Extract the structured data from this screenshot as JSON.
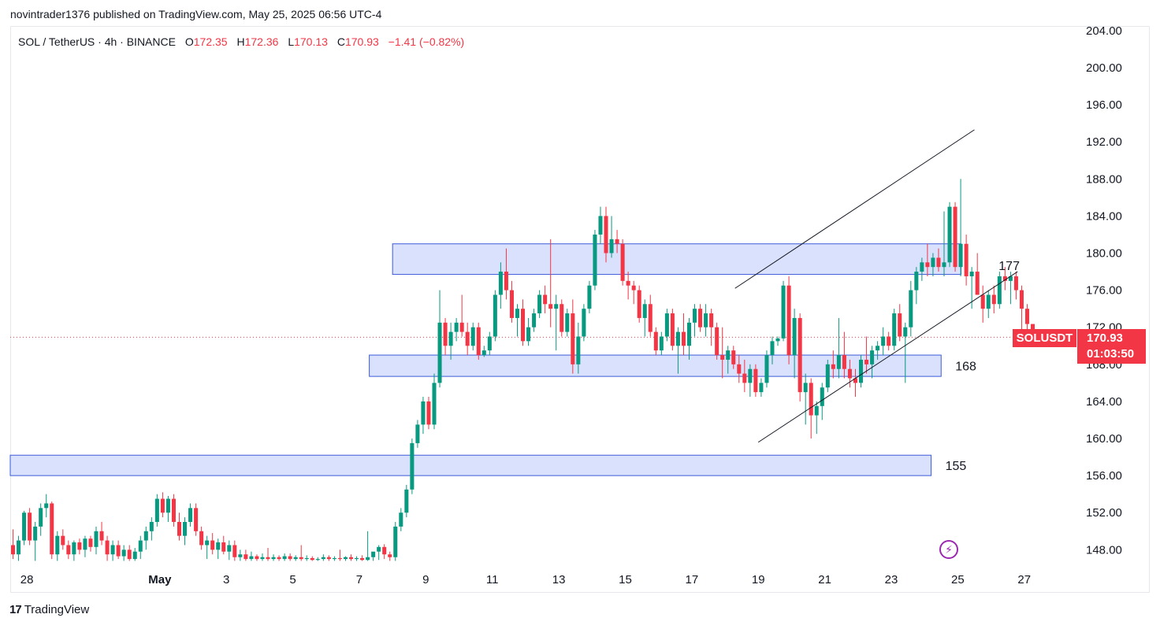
{
  "header": {
    "published_by": "novintrader1376 published on TradingView.com, May 25, 2025 06:56 UTC-4"
  },
  "legend": {
    "symbol_line": "SOL / TetherUS · 4h · BINANCE",
    "open_key": "O",
    "open": "172.35",
    "high_key": "H",
    "high": "172.36",
    "low_key": "L",
    "low": "170.13",
    "close_key": "C",
    "close": "170.93",
    "change": "−1.41 (−0.82%)"
  },
  "price_tag": {
    "symbol": "SOLUSDT",
    "price": "170.93",
    "countdown": "01:03:50"
  },
  "footer": {
    "logo_mark": "17",
    "brand": "TradingView"
  },
  "colors": {
    "up": "#089981",
    "down": "#f23645",
    "zone_fill": "#d2dcfb",
    "zone_stroke": "#3b5ad9",
    "channel": "#131722",
    "price_line": "#f23645"
  },
  "chart_data": {
    "type": "candlestick",
    "symbol": "SOLUSDT",
    "timeframe": "4h",
    "exchange": "BINANCE",
    "y_ticks": [
      148,
      152,
      156,
      160,
      164,
      168,
      172,
      176,
      180,
      184,
      188,
      192,
      196,
      200,
      204
    ],
    "y_tick_labels": [
      "148.00",
      "152.00",
      "156.00",
      "160.00",
      "164.00",
      "168.00",
      "172.00",
      "176.00",
      "180.00",
      "184.00",
      "188.00",
      "192.00",
      "196.00",
      "200.00",
      "204.00"
    ],
    "ylim": [
      146.5,
      204.5
    ],
    "x_tick_labels": [
      "28",
      "May",
      "3",
      "5",
      "7",
      "9",
      "11",
      "13",
      "15",
      "17",
      "19",
      "21",
      "23",
      "25",
      "27"
    ],
    "x_tick_days": [
      -3,
      1,
      3,
      5,
      7,
      9,
      11,
      13,
      15,
      17,
      19,
      21,
      23,
      25,
      27
    ],
    "xlim_days": [
      -3.5,
      28.5
    ],
    "last_price": 170.93,
    "zones": [
      {
        "low": 177.7,
        "high": 181.0,
        "x_start_day": 8.0,
        "x_end_day": 25.1
      },
      {
        "low": 166.7,
        "high": 169.0,
        "x_start_day": 7.3,
        "x_end_day": 24.5,
        "label": "168"
      },
      {
        "low": 156.0,
        "high": 158.2,
        "x_start_day": -3.5,
        "x_end_day": 24.2,
        "label": "155"
      }
    ],
    "channel_lines": [
      {
        "from": {
          "day": 18.3,
          "price": 176.2
        },
        "to": {
          "day": 25.5,
          "price": 193.3
        }
      },
      {
        "from": {
          "day": 19.0,
          "price": 159.6
        },
        "to": {
          "day": 26.8,
          "price": 178.0
        },
        "label": "177"
      }
    ],
    "candle_interval_days": 0.1667,
    "candles_start_day": -3.5,
    "candles": [
      [
        148.5,
        150.2,
        147.0,
        147.5
      ],
      [
        147.5,
        149.5,
        146.8,
        149.0
      ],
      [
        149.0,
        152.2,
        148.5,
        152.0
      ],
      [
        152.0,
        152.5,
        148.5,
        149.0
      ],
      [
        149.0,
        151.0,
        146.8,
        150.5
      ],
      [
        150.5,
        153.0,
        149.5,
        152.5
      ],
      [
        152.5,
        154.0,
        151.5,
        153.0
      ],
      [
        153.0,
        153.2,
        147.0,
        147.5
      ],
      [
        147.5,
        150.0,
        146.8,
        149.5
      ],
      [
        149.5,
        150.2,
        148.0,
        148.5
      ],
      [
        148.5,
        149.0,
        147.0,
        147.5
      ],
      [
        147.5,
        149.0,
        146.8,
        148.8
      ],
      [
        148.8,
        149.2,
        147.5,
        148.0
      ],
      [
        148.0,
        149.5,
        147.2,
        149.2
      ],
      [
        149.2,
        149.5,
        147.8,
        148.3
      ],
      [
        148.3,
        150.5,
        147.5,
        150.0
      ],
      [
        150.0,
        151.0,
        148.5,
        149.0
      ],
      [
        149.0,
        149.5,
        146.8,
        147.5
      ],
      [
        147.5,
        149.0,
        146.8,
        148.5
      ],
      [
        148.5,
        149.0,
        147.0,
        147.3
      ],
      [
        147.3,
        148.5,
        146.8,
        148.0
      ],
      [
        148.0,
        148.5,
        146.8,
        147.0
      ],
      [
        147.0,
        148.2,
        146.8,
        147.8
      ],
      [
        147.8,
        149.5,
        147.0,
        149.0
      ],
      [
        149.0,
        150.5,
        148.0,
        150.0
      ],
      [
        150.0,
        151.5,
        149.0,
        151.0
      ],
      [
        151.0,
        154.0,
        150.5,
        153.5
      ],
      [
        153.5,
        154.2,
        151.5,
        152.0
      ],
      [
        152.0,
        153.8,
        151.0,
        153.5
      ],
      [
        153.5,
        154.0,
        150.5,
        151.0
      ],
      [
        151.0,
        152.0,
        149.0,
        149.5
      ],
      [
        149.5,
        151.5,
        148.5,
        151.0
      ],
      [
        151.0,
        153.0,
        150.5,
        152.5
      ],
      [
        152.5,
        153.0,
        149.5,
        150.0
      ],
      [
        150.0,
        150.5,
        148.0,
        148.5
      ],
      [
        148.5,
        149.5,
        147.0,
        149.0
      ],
      [
        149.0,
        149.8,
        147.5,
        148.0
      ],
      [
        148.0,
        149.2,
        147.0,
        148.8
      ],
      [
        148.8,
        149.5,
        147.5,
        147.8
      ],
      [
        147.8,
        149.0,
        146.9,
        148.5
      ],
      [
        148.5,
        149.0,
        146.8,
        147.2
      ],
      [
        147.2,
        148.0,
        146.8,
        147.5
      ],
      [
        147.5,
        148.0,
        146.8,
        147.0
      ],
      [
        147.0,
        147.8,
        146.8,
        147.3
      ],
      [
        147.3,
        147.5,
        146.8,
        147.0
      ],
      [
        147.0,
        147.6,
        146.8,
        147.2
      ],
      [
        147.2,
        148.2,
        146.8,
        147.0
      ],
      [
        147.0,
        147.5,
        146.8,
        147.2
      ],
      [
        147.2,
        147.4,
        146.8,
        147.0
      ],
      [
        147.0,
        147.6,
        146.8,
        147.3
      ],
      [
        147.3,
        147.6,
        146.8,
        147.0
      ],
      [
        147.0,
        147.4,
        146.8,
        147.2
      ],
      [
        147.2,
        148.5,
        146.8,
        147.0
      ],
      [
        147.0,
        147.4,
        146.8,
        147.1
      ],
      [
        147.1,
        147.3,
        146.8,
        146.9
      ],
      [
        146.9,
        147.2,
        146.8,
        147.0
      ],
      [
        147.0,
        147.5,
        146.8,
        147.2
      ],
      [
        147.2,
        147.4,
        146.8,
        147.0
      ],
      [
        147.0,
        147.3,
        146.8,
        147.1
      ],
      [
        147.1,
        148.0,
        146.8,
        147.0
      ],
      [
        147.0,
        147.3,
        146.8,
        147.2
      ],
      [
        147.2,
        147.5,
        146.8,
        147.0
      ],
      [
        147.0,
        147.3,
        146.8,
        147.1
      ],
      [
        147.1,
        147.4,
        146.8,
        146.9
      ],
      [
        146.9,
        150.0,
        146.8,
        147.2
      ],
      [
        147.2,
        147.6,
        146.8,
        147.8
      ],
      [
        147.8,
        148.5,
        146.9,
        148.3
      ],
      [
        148.3,
        148.6,
        147.0,
        147.5
      ],
      [
        147.5,
        147.8,
        146.8,
        147.2
      ],
      [
        147.2,
        151.0,
        146.8,
        150.5
      ],
      [
        150.5,
        152.5,
        150.0,
        152.0
      ],
      [
        152.0,
        155.0,
        151.5,
        154.5
      ],
      [
        154.5,
        160.0,
        154.0,
        159.5
      ],
      [
        159.5,
        162.0,
        159.0,
        161.5
      ],
      [
        161.5,
        164.5,
        160.5,
        164.0
      ],
      [
        164.0,
        164.5,
        161.0,
        161.5
      ],
      [
        161.5,
        167.0,
        161.0,
        166.0
      ],
      [
        166.0,
        176.0,
        165.5,
        172.5
      ],
      [
        172.5,
        173.0,
        169.0,
        170.0
      ],
      [
        170.0,
        172.5,
        168.5,
        171.5
      ],
      [
        171.5,
        173.0,
        170.5,
        172.5
      ],
      [
        172.5,
        175.5,
        171.0,
        171.5
      ],
      [
        171.5,
        172.5,
        169.0,
        170.0
      ],
      [
        170.0,
        172.5,
        169.5,
        172.0
      ],
      [
        172.0,
        172.5,
        168.5,
        169.0
      ],
      [
        169.0,
        170.0,
        168.8,
        169.5
      ],
      [
        169.5,
        171.5,
        169.0,
        171.0
      ],
      [
        171.0,
        176.0,
        170.5,
        175.5
      ],
      [
        175.5,
        179.0,
        174.0,
        178.0
      ],
      [
        178.0,
        180.5,
        175.0,
        176.0
      ],
      [
        176.0,
        177.0,
        172.5,
        173.0
      ],
      [
        173.0,
        174.5,
        171.0,
        174.0
      ],
      [
        174.0,
        175.0,
        170.0,
        170.5
      ],
      [
        170.5,
        173.0,
        170.0,
        172.0
      ],
      [
        172.0,
        174.0,
        171.5,
        173.5
      ],
      [
        173.5,
        176.0,
        173.0,
        175.5
      ],
      [
        175.5,
        176.5,
        173.5,
        174.5
      ],
      [
        174.5,
        181.5,
        172.0,
        174.0
      ],
      [
        174.0,
        175.5,
        169.5,
        174.5
      ],
      [
        174.5,
        175.0,
        171.0,
        171.5
      ],
      [
        171.5,
        174.0,
        171.0,
        173.5
      ],
      [
        173.5,
        175.0,
        167.0,
        168.0
      ],
      [
        168.0,
        172.5,
        167.0,
        171.0
      ],
      [
        171.0,
        174.5,
        170.5,
        174.0
      ],
      [
        174.0,
        177.0,
        173.5,
        176.5
      ],
      [
        176.5,
        182.5,
        176.0,
        182.0
      ],
      [
        182.0,
        185.0,
        181.0,
        184.0
      ],
      [
        184.0,
        185.0,
        179.0,
        180.0
      ],
      [
        180.0,
        184.0,
        179.5,
        181.5
      ],
      [
        181.5,
        182.5,
        180.0,
        181.0
      ],
      [
        181.0,
        181.5,
        176.5,
        177.0
      ],
      [
        177.0,
        178.0,
        175.0,
        176.5
      ],
      [
        176.5,
        177.0,
        174.5,
        176.0
      ],
      [
        176.0,
        176.5,
        172.5,
        173.0
      ],
      [
        173.0,
        175.0,
        171.0,
        174.5
      ],
      [
        174.5,
        175.5,
        171.0,
        171.5
      ],
      [
        171.5,
        172.0,
        169.0,
        169.5
      ],
      [
        169.5,
        171.5,
        169.0,
        171.0
      ],
      [
        171.0,
        174.0,
        170.5,
        173.5
      ],
      [
        173.5,
        174.0,
        169.5,
        170.0
      ],
      [
        170.0,
        172.0,
        167.0,
        171.5
      ],
      [
        171.5,
        173.5,
        169.0,
        170.0
      ],
      [
        170.0,
        173.0,
        168.5,
        172.5
      ],
      [
        172.5,
        174.5,
        171.0,
        174.0
      ],
      [
        174.0,
        174.5,
        171.5,
        172.0
      ],
      [
        172.0,
        174.5,
        171.0,
        173.5
      ],
      [
        173.5,
        174.0,
        170.0,
        172.0
      ],
      [
        172.0,
        172.5,
        168.5,
        169.0
      ],
      [
        169.0,
        172.0,
        166.5,
        168.5
      ],
      [
        168.5,
        170.0,
        167.0,
        169.5
      ],
      [
        169.5,
        170.0,
        167.5,
        168.0
      ],
      [
        168.0,
        169.0,
        166.0,
        167.0
      ],
      [
        167.0,
        168.5,
        165.0,
        166.0
      ],
      [
        166.0,
        168.0,
        164.5,
        167.5
      ],
      [
        167.5,
        168.0,
        164.5,
        165.0
      ],
      [
        165.0,
        166.5,
        164.5,
        166.0
      ],
      [
        166.0,
        169.5,
        165.5,
        169.0
      ],
      [
        169.0,
        171.0,
        168.0,
        170.5
      ],
      [
        170.5,
        171.0,
        170.0,
        170.8
      ],
      [
        170.8,
        177.0,
        170.5,
        176.5
      ],
      [
        176.5,
        177.5,
        168.0,
        169.0
      ],
      [
        169.0,
        174.0,
        166.5,
        173.0
      ],
      [
        173.0,
        173.5,
        164.0,
        165.0
      ],
      [
        165.0,
        167.0,
        161.5,
        166.0
      ],
      [
        166.0,
        166.5,
        160.0,
        162.5
      ],
      [
        162.5,
        164.0,
        160.5,
        163.5
      ],
      [
        163.5,
        166.0,
        162.0,
        165.5
      ],
      [
        165.5,
        168.5,
        165.0,
        168.0
      ],
      [
        168.0,
        169.5,
        166.5,
        167.5
      ],
      [
        167.5,
        173.0,
        166.5,
        169.0
      ],
      [
        169.0,
        171.5,
        166.5,
        167.5
      ],
      [
        167.5,
        168.5,
        165.5,
        166.5
      ],
      [
        166.5,
        167.5,
        164.5,
        166.0
      ],
      [
        166.0,
        169.0,
        165.5,
        168.5
      ],
      [
        168.5,
        171.0,
        167.0,
        168.0
      ],
      [
        168.0,
        170.0,
        166.5,
        169.5
      ],
      [
        169.5,
        170.5,
        168.5,
        170.0
      ],
      [
        170.0,
        172.0,
        169.0,
        171.0
      ],
      [
        171.0,
        171.5,
        169.5,
        170.0
      ],
      [
        170.0,
        174.0,
        169.5,
        173.5
      ],
      [
        173.5,
        174.5,
        170.5,
        171.0
      ],
      [
        171.0,
        172.5,
        166.0,
        172.0
      ],
      [
        172.0,
        177.0,
        171.0,
        176.0
      ],
      [
        176.0,
        178.5,
        174.5,
        178.0
      ],
      [
        178.0,
        179.5,
        177.0,
        179.0
      ],
      [
        179.0,
        181.0,
        177.5,
        178.5
      ],
      [
        178.5,
        180.0,
        177.5,
        179.5
      ],
      [
        179.5,
        180.5,
        178.0,
        178.5
      ],
      [
        178.5,
        184.5,
        177.5,
        179.0
      ],
      [
        179.0,
        185.5,
        178.5,
        185.0
      ],
      [
        185.0,
        185.5,
        178.0,
        178.5
      ],
      [
        178.5,
        188.0,
        177.5,
        181.0
      ],
      [
        181.0,
        182.0,
        176.5,
        177.5
      ],
      [
        177.5,
        178.5,
        174.0,
        178.0
      ],
      [
        178.0,
        180.0,
        176.0,
        175.5
      ],
      [
        175.5,
        176.5,
        172.5,
        174.0
      ],
      [
        174.0,
        176.0,
        173.0,
        175.5
      ],
      [
        175.5,
        176.5,
        173.5,
        174.5
      ],
      [
        174.5,
        178.0,
        174.0,
        177.5
      ],
      [
        177.5,
        178.5,
        176.0,
        177.0
      ],
      [
        177.0,
        178.0,
        174.5,
        177.5
      ],
      [
        177.5,
        178.0,
        175.0,
        176.0
      ],
      [
        176.0,
        176.5,
        170.5,
        174.0
      ],
      [
        174.0,
        174.5,
        171.0,
        172.35
      ],
      [
        172.35,
        172.36,
        170.13,
        170.93
      ]
    ]
  }
}
